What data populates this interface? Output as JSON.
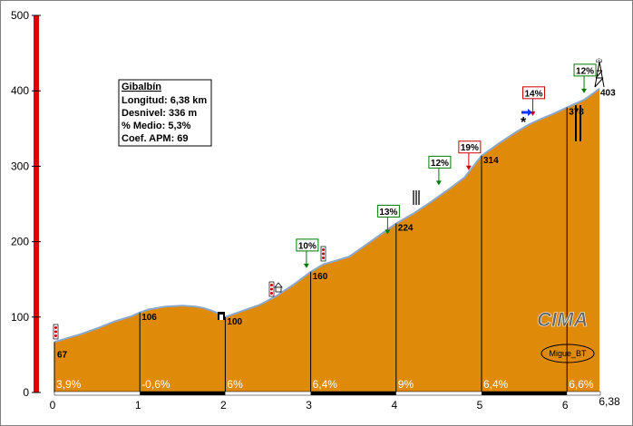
{
  "chart_data": {
    "type": "area",
    "title": "Gibalbín",
    "info": [
      "Longitud: 6,38 km",
      "Desnivel: 336 m",
      "% Medio: 5,3%",
      "Coef. APM: 69"
    ],
    "x_ticks": [
      "0",
      "1",
      "2",
      "3",
      "4",
      "5",
      "6"
    ],
    "x_end_label": "6,38",
    "y_ticks": [
      "0",
      "100",
      "200",
      "300",
      "400",
      "500"
    ],
    "xlim": [
      0,
      6.38
    ],
    "ylim": [
      0,
      500
    ],
    "profile": [
      [
        0,
        67
      ],
      [
        0.15,
        72
      ],
      [
        0.3,
        77
      ],
      [
        0.5,
        85
      ],
      [
        0.7,
        94
      ],
      [
        0.9,
        101
      ],
      [
        1.0,
        106
      ],
      [
        1.1,
        110
      ],
      [
        1.3,
        114
      ],
      [
        1.5,
        115
      ],
      [
        1.65,
        114
      ],
      [
        1.75,
        112
      ],
      [
        1.85,
        108
      ],
      [
        1.95,
        103
      ],
      [
        2.0,
        100
      ],
      [
        2.2,
        108
      ],
      [
        2.4,
        116
      ],
      [
        2.6,
        128
      ],
      [
        2.8,
        143
      ],
      [
        3.0,
        160
      ],
      [
        3.15,
        170
      ],
      [
        3.3,
        175
      ],
      [
        3.45,
        180
      ],
      [
        3.6,
        192
      ],
      [
        3.8,
        208
      ],
      [
        4.0,
        224
      ],
      [
        4.2,
        237
      ],
      [
        4.4,
        252
      ],
      [
        4.6,
        268
      ],
      [
        4.8,
        285
      ],
      [
        5.0,
        314
      ],
      [
        5.2,
        330
      ],
      [
        5.4,
        345
      ],
      [
        5.55,
        355
      ],
      [
        5.7,
        363
      ],
      [
        5.85,
        370
      ],
      [
        6.0,
        378
      ],
      [
        6.1,
        383
      ],
      [
        6.2,
        388
      ],
      [
        6.3,
        396
      ],
      [
        6.38,
        403
      ]
    ],
    "km_marks": [
      {
        "x": 1,
        "y": 106,
        "label": "106"
      },
      {
        "x": 2,
        "y": 100,
        "label": "100"
      },
      {
        "x": 3,
        "y": 160,
        "label": "160"
      },
      {
        "x": 4,
        "y": 224,
        "label": "224"
      },
      {
        "x": 5,
        "y": 314,
        "label": "314"
      },
      {
        "x": 6,
        "y": 378,
        "label": "378"
      }
    ],
    "start_label": {
      "x": 0,
      "y": 67,
      "label": "67"
    },
    "end_label": {
      "x": 6.38,
      "y": 403,
      "label": "403"
    },
    "segment_grades": [
      {
        "x": 0,
        "label": "3,9%"
      },
      {
        "x": 1,
        "label": "-0,6%"
      },
      {
        "x": 2,
        "label": "6%"
      },
      {
        "x": 3,
        "label": "6,4%"
      },
      {
        "x": 4,
        "label": "9%"
      },
      {
        "x": 5,
        "label": "6,4%"
      },
      {
        "x": 6,
        "label": "6,6%"
      }
    ],
    "peak_markers": [
      {
        "x": 2.95,
        "y": 160,
        "label": "10%",
        "color": "#007a00"
      },
      {
        "x": 3.9,
        "y": 205,
        "label": "13%",
        "color": "#007a00"
      },
      {
        "x": 4.5,
        "y": 270,
        "label": "12%",
        "color": "#007a00"
      },
      {
        "x": 4.85,
        "y": 290,
        "label": "19%",
        "color": "#cc0000"
      },
      {
        "x": 5.6,
        "y": 362,
        "label": "14%",
        "color": "#cc0000"
      },
      {
        "x": 6.2,
        "y": 392,
        "label": "12%",
        "color": "#007a00"
      }
    ],
    "colors": {
      "fill": "#e08a0a",
      "line": "#7f9fc4",
      "axis_red": "#dd0000",
      "grid": "#000000"
    },
    "watermark": "CIMA",
    "author": "Migue_BT"
  }
}
